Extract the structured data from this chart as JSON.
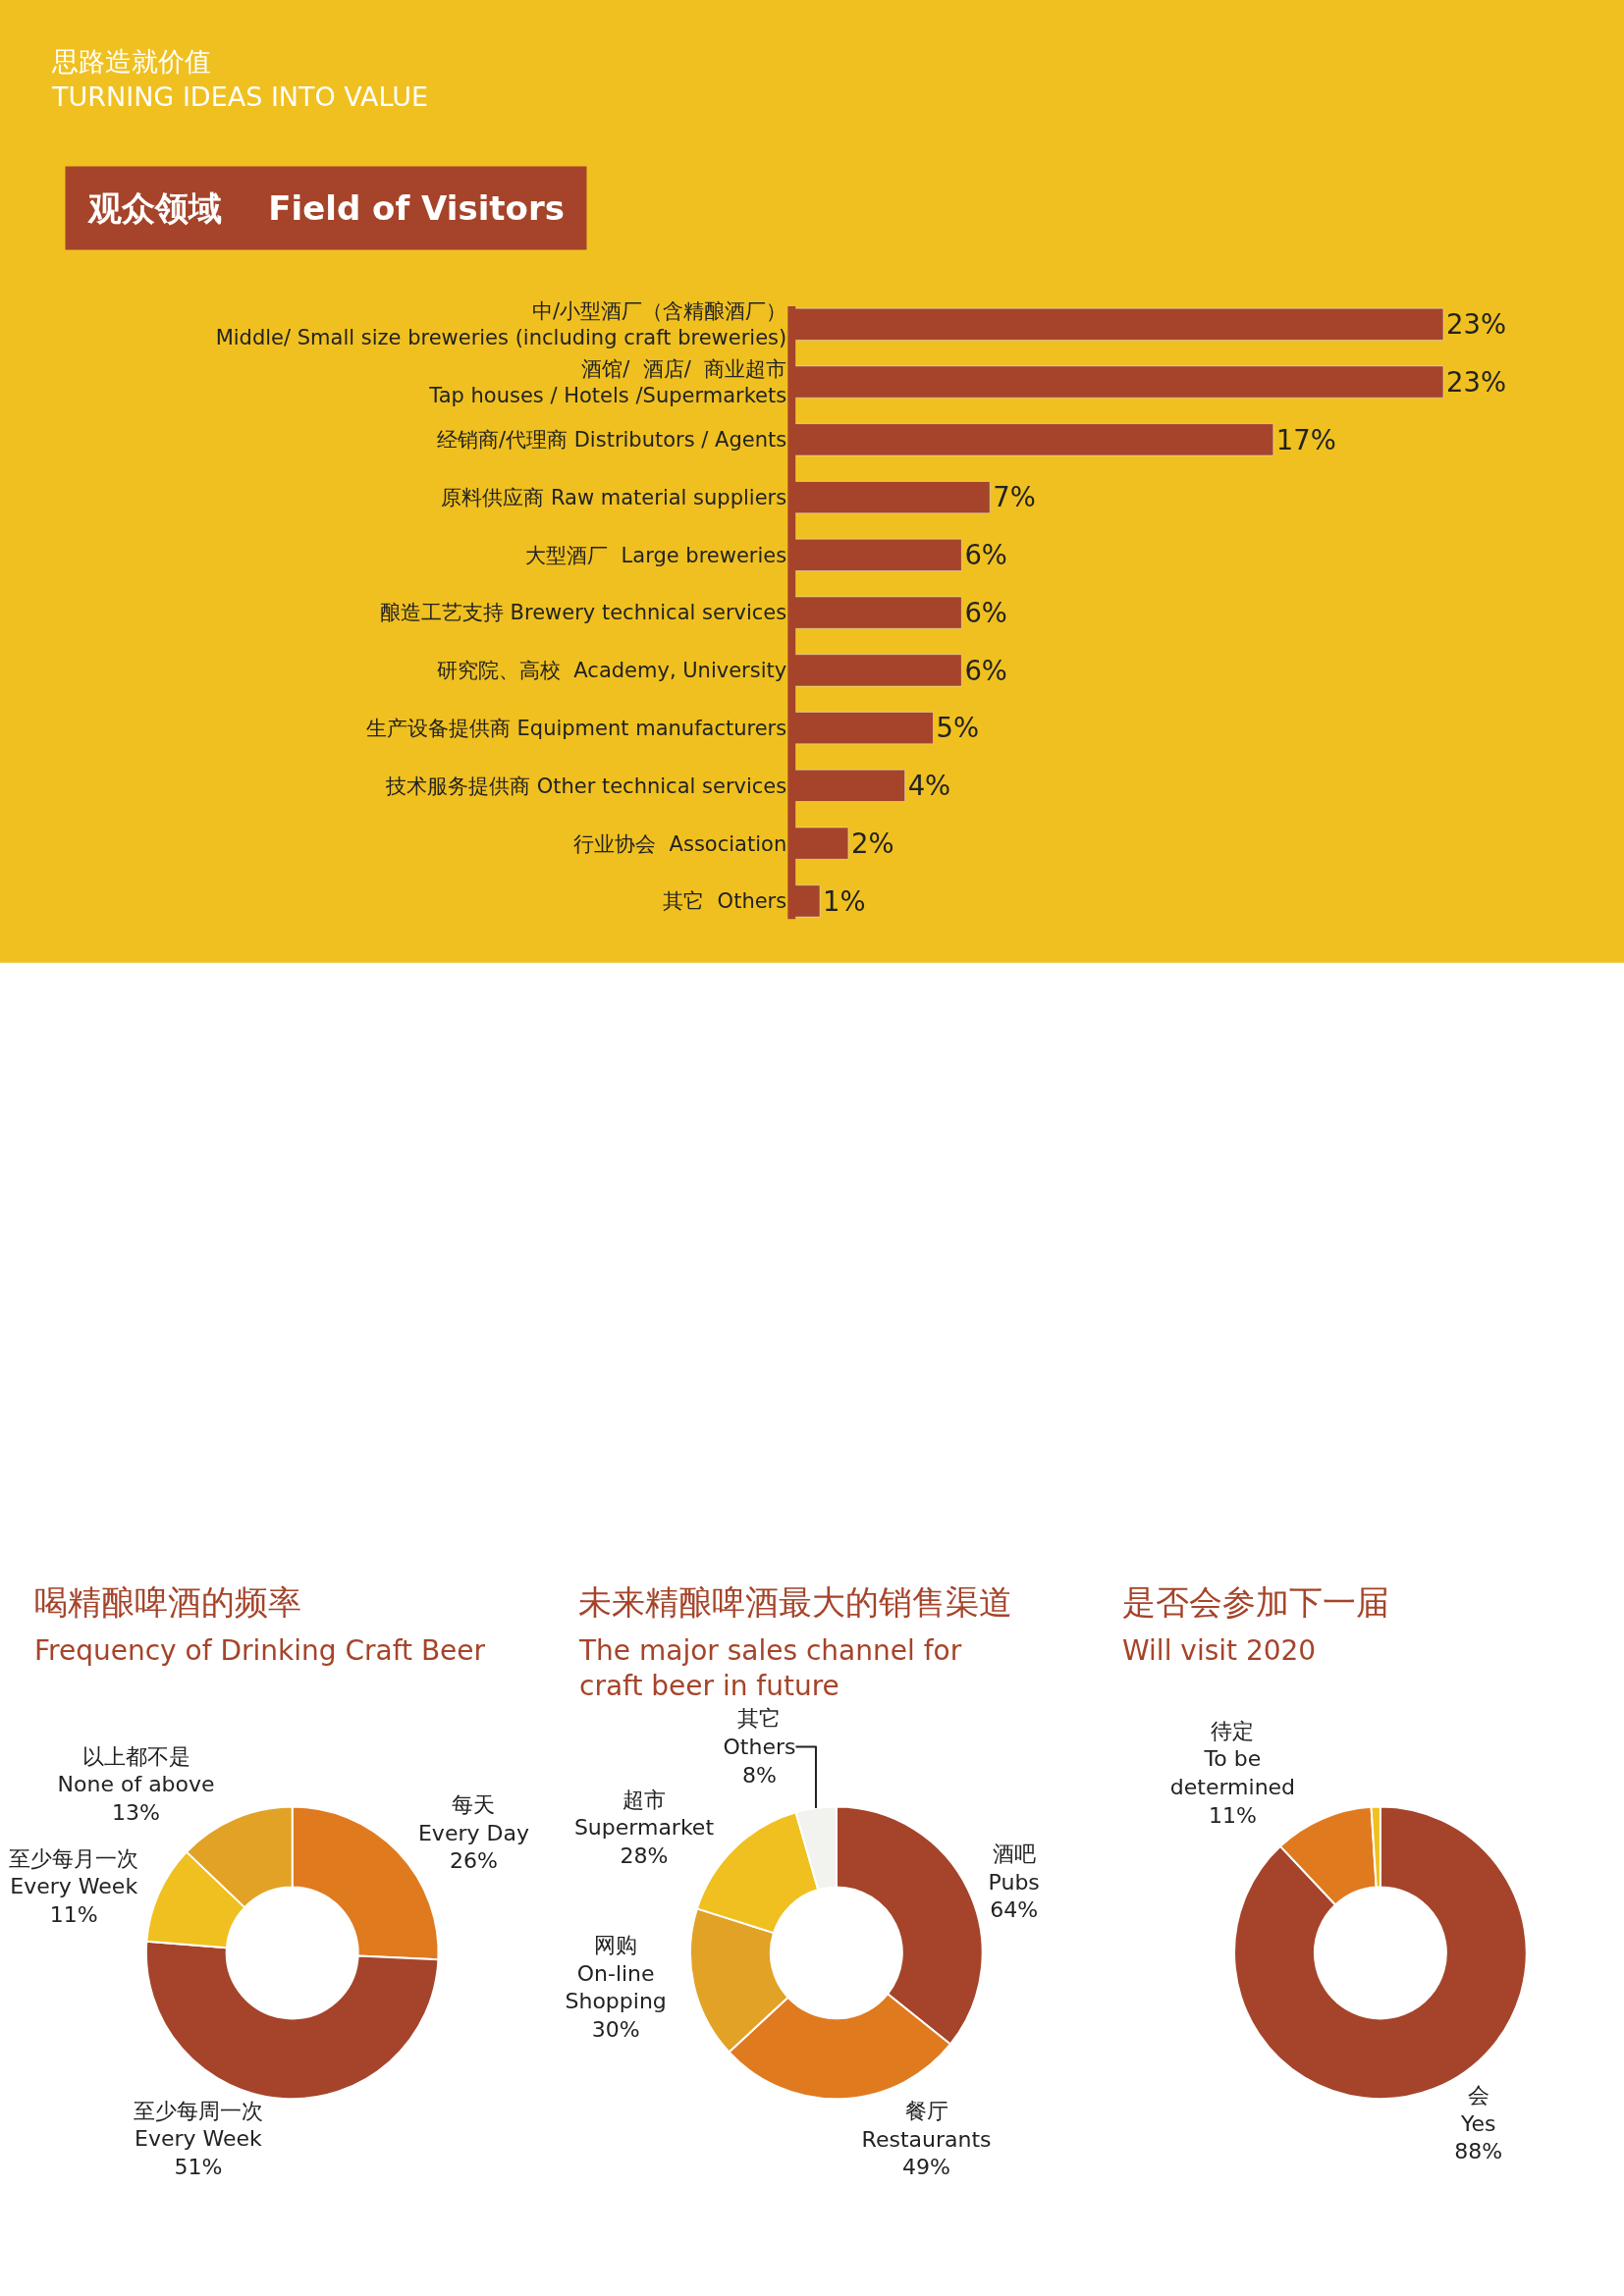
{
  "chart_data": [
    {
      "type": "bar",
      "orientation": "horizontal",
      "title": "观众领域    Field of Visitors",
      "annotations": [
        "思路造就价值",
        "TURNING IDEAS INTO VALUE"
      ],
      "color": "#a5442a",
      "categories": [
        "中/小型酒厂（含精酿酒厂）\nMiddle/ Small size breweries (including craft breweries)",
        "酒馆/  酒店/  商业超市\nTap houses / Hotels /Supermarkets",
        "经销商/代理商 Distributors / Agents",
        "原料供应商 Raw material suppliers",
        "大型酒厂  Large breweries",
        "酿造工艺支持 Brewery technical services",
        "研究院、高校  Academy, University",
        "生产设备提供商 Equipment manufacturers",
        "技术服务提供商 Other technical services",
        "行业协会  Association",
        "其它  Others"
      ],
      "values": [
        23,
        23,
        17,
        7,
        6,
        6,
        6,
        5,
        4,
        2,
        1
      ],
      "value_labels": [
        "23%",
        "23%",
        "17%",
        "7%",
        "6%",
        "6%",
        "6%",
        "5%",
        "4%",
        "2%",
        "1%"
      ]
    },
    {
      "type": "donut",
      "title": "喝精酿啤酒的频率",
      "subtitle": "Frequency of Drinking Craft Beer",
      "categories": [
        "每天\nEvery Day",
        "至少每周一次\nEvery Week",
        "至少每月一次\nEvery Week",
        "以上都不是\nNone of above"
      ],
      "values": [
        26,
        51,
        11,
        13
      ],
      "value_labels": [
        "26%",
        "51%",
        "11%",
        "13%"
      ],
      "colors": [
        "#e07a1f",
        "#a5442a",
        "#f0c020",
        "#e2a226"
      ]
    },
    {
      "type": "donut",
      "title": "未来精酿啤酒最大的销售渠道",
      "subtitle": "The major sales channel for\ncraft beer in future",
      "categories": [
        "酒吧\nPubs",
        "餐厅\nRestaurants",
        "网购\nOn-line\nShopping",
        "超市\nSupermarket",
        "其它\nOthers"
      ],
      "values": [
        64,
        49,
        30,
        28,
        8
      ],
      "value_labels": [
        "64%",
        "49%",
        "30%",
        "28%",
        "8%"
      ],
      "colors": [
        "#a5442a",
        "#e07a1f",
        "#e2a226",
        "#f0c020",
        "#f2f2ee"
      ]
    },
    {
      "type": "donut",
      "title": "是否会参加下一届",
      "subtitle": "Will visit 2020",
      "categories": [
        "会\nYes",
        "待定\nTo be\ndetermined",
        null
      ],
      "values": [
        88,
        11,
        1
      ],
      "value_labels": [
        "88%",
        "11%",
        null
      ],
      "colors": [
        "#a5442a",
        "#e07a1f",
        "#f0c020"
      ]
    }
  ]
}
